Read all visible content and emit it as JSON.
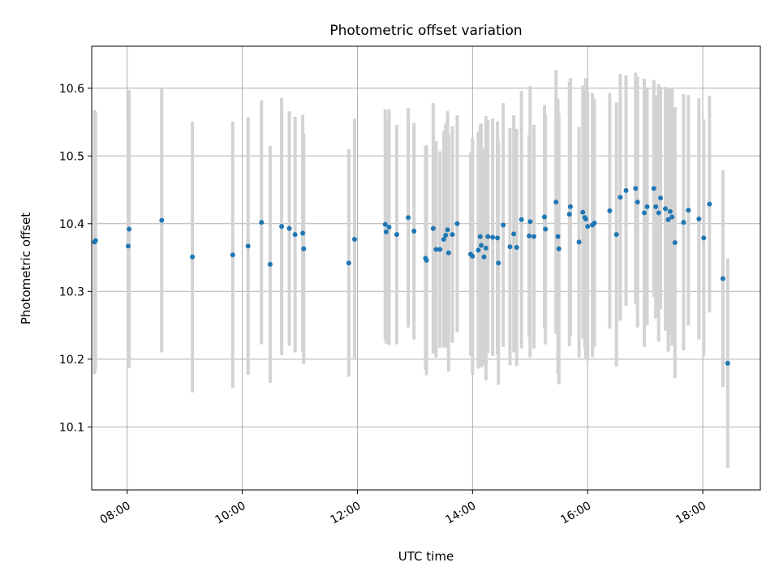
{
  "chart_data": {
    "type": "scatter",
    "title": "Photometric offset variation",
    "xlabel": "UTC time",
    "ylabel": "Photometric offset",
    "x_ticks": [
      "08:00",
      "10:00",
      "12:00",
      "14:00",
      "16:00",
      "18:00"
    ],
    "y_ticks": [
      "10.1",
      "10.2",
      "10.3",
      "10.4",
      "10.5",
      "10.6"
    ],
    "xlim": [
      "07:23",
      "19:00"
    ],
    "ylim": [
      10.007,
      10.662
    ],
    "grid": true,
    "colors": {
      "point": "#1f77b4",
      "errorbar": "#d3d3d3"
    },
    "x": [
      "07:26",
      "07:27",
      "08:01",
      "08:02",
      "08:36",
      "09:08",
      "09:50",
      "10:06",
      "10:20",
      "10:29",
      "10:41",
      "10:49",
      "10:55",
      "11:03",
      "11:04",
      "11:51",
      "11:57",
      "12:29",
      "12:30",
      "12:33",
      "12:41",
      "12:53",
      "12:59",
      "13:11",
      "13:12",
      "13:19",
      "13:22",
      "13:26",
      "13:30",
      "13:32",
      "13:34",
      "13:35",
      "13:39",
      "13:44",
      "13:58",
      "14:00",
      "14:06",
      "14:08",
      "14:09",
      "14:12",
      "14:14",
      "14:16",
      "14:21",
      "14:26",
      "14:27",
      "14:32",
      "14:39",
      "14:43",
      "14:46",
      "14:51",
      "14:59",
      "15:00",
      "15:04",
      "15:15",
      "15:16",
      "15:27",
      "15:29",
      "15:30",
      "15:41",
      "15:42",
      "15:51",
      "15:55",
      "15:57",
      "15:58",
      "16:00",
      "16:05",
      "16:07",
      "16:23",
      "16:30",
      "16:34",
      "16:40",
      "16:50",
      "16:52",
      "16:59",
      "17:02",
      "17:09",
      "17:11",
      "17:14",
      "17:16",
      "17:21",
      "17:24",
      "17:26",
      "17:28",
      "17:31",
      "17:40",
      "17:45",
      "17:56",
      "18:01",
      "18:07",
      "18:21",
      "18:26"
    ],
    "y": [
      10.373,
      10.375,
      10.367,
      10.392,
      10.405,
      10.351,
      10.354,
      10.367,
      10.402,
      10.34,
      10.396,
      10.393,
      10.384,
      10.386,
      10.363,
      10.342,
      10.377,
      10.399,
      10.388,
      10.395,
      10.384,
      10.409,
      10.389,
      10.349,
      10.346,
      10.393,
      10.362,
      10.362,
      10.377,
      10.383,
      10.391,
      10.357,
      10.384,
      10.4,
      10.355,
      10.352,
      10.361,
      10.381,
      10.368,
      10.351,
      10.364,
      10.381,
      10.38,
      10.379,
      10.342,
      10.398,
      10.366,
      10.385,
      10.365,
      10.406,
      10.382,
      10.403,
      10.381,
      10.41,
      10.392,
      10.432,
      10.381,
      10.363,
      10.414,
      10.425,
      10.373,
      10.417,
      10.409,
      10.407,
      10.396,
      10.398,
      10.401,
      10.419,
      10.384,
      10.439,
      10.449,
      10.452,
      10.432,
      10.416,
      10.425,
      10.452,
      10.425,
      10.416,
      10.438,
      10.422,
      10.406,
      10.418,
      10.41,
      10.372,
      10.402,
      10.42,
      10.407,
      10.379,
      10.429,
      10.319,
      10.194
    ],
    "err": [
      0.195,
      0.19,
      0.18,
      0.205,
      0.195,
      0.2,
      0.197,
      0.19,
      0.18,
      0.175,
      0.19,
      0.173,
      0.174,
      0.175,
      0.17,
      0.168,
      0.178,
      0.17,
      0.165,
      0.174,
      0.162,
      0.162,
      0.16,
      0.165,
      0.17,
      0.185,
      0.16,
      0.145,
      0.16,
      0.165,
      0.175,
      0.175,
      0.16,
      0.16,
      0.15,
      0.175,
      0.175,
      0.165,
      0.18,
      0.16,
      0.195,
      0.172,
      0.175,
      0.172,
      0.18,
      0.18,
      0.175,
      0.175,
      0.175,
      0.19,
      0.15,
      0.2,
      0.165,
      0.165,
      0.17,
      0.195,
      0.203,
      0.2,
      0.195,
      0.19,
      0.17,
      0.187,
      0.194,
      0.208,
      0.198,
      0.195,
      0.183,
      0.174,
      0.195,
      0.182,
      0.17,
      0.171,
      0.185,
      0.198,
      0.175,
      0.16,
      0.165,
      0.19,
      0.164,
      0.18,
      0.195,
      0.182,
      0.19,
      0.2,
      0.189,
      0.17,
      0.178,
      0.175,
      0.16,
      0.16,
      0.155
    ]
  }
}
